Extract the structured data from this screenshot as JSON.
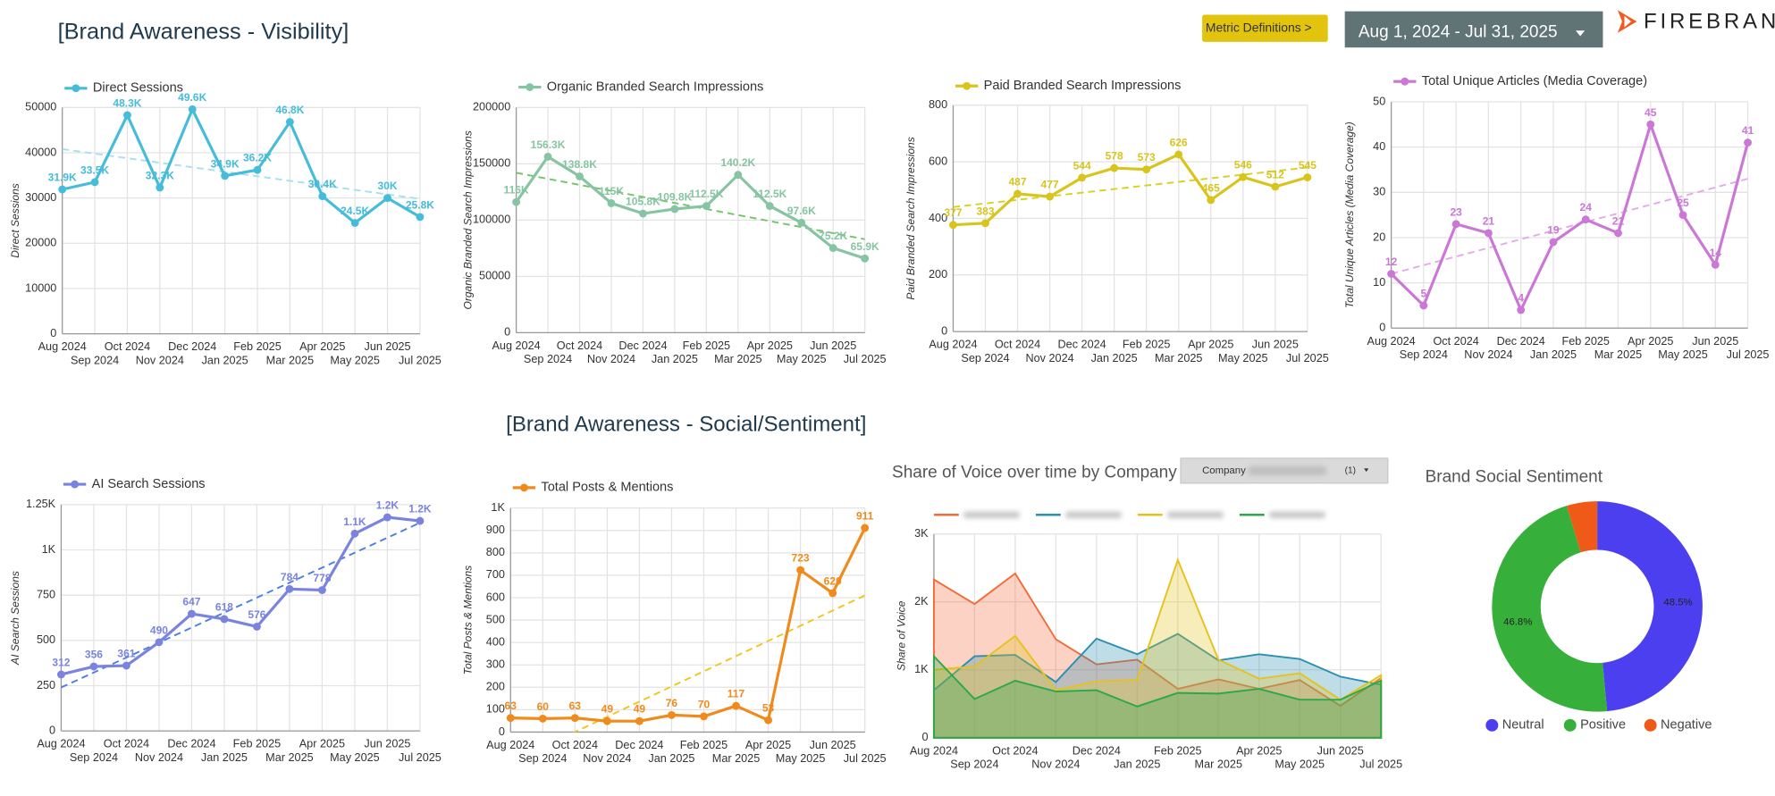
{
  "header": {
    "title": "[Brand Awareness - Visibility]",
    "metric_button": "Metric Definitions >",
    "date_range": "Aug 1, 2024 - Jul 31, 2025",
    "logo": "FIREBRAND"
  },
  "section_title": "[Brand Awareness - Social/Sentiment]",
  "chart_data": [
    {
      "type": "line",
      "y_label": "Direct Sessions",
      "categories": [
        "Aug 2024",
        "Sep 2024",
        "Oct 2024",
        "Nov 2024",
        "Dec 2024",
        "Jan 2025",
        "Feb 2025",
        "Mar 2025",
        "Apr 2025",
        "May 2025",
        "Jun 2025",
        "Jul 2025"
      ],
      "series": [
        {
          "name": "Direct Sessions",
          "color": "#45bcd9",
          "values": [
            31900,
            33500,
            48300,
            32300,
            49600,
            34900,
            36200,
            46800,
            30400,
            24500,
            30000,
            25800
          ],
          "value_labels": [
            "31.9K",
            "33.5K",
            "48.3K",
            "32.3K",
            "49.6K",
            "34.9K",
            "36.2K",
            "46.8K",
            "30.4K",
            "24.5K",
            "30K",
            "25.8K"
          ]
        }
      ],
      "trend": {
        "color": "#a6dfee",
        "values": [
          40800,
          29800
        ]
      },
      "ylim": [
        0,
        50000
      ],
      "yticks": [
        0,
        10000,
        20000,
        30000,
        40000,
        50000
      ],
      "grid": true
    },
    {
      "type": "line",
      "y_label": "Organic Branded Search Impressions",
      "categories": [
        "Aug 2024",
        "Sep 2024",
        "Oct 2024",
        "Nov 2024",
        "Dec 2024",
        "Jan 2025",
        "Feb 2025",
        "Mar 2025",
        "Apr 2025",
        "May 2025",
        "Jun 2025",
        "Jul 2025"
      ],
      "series": [
        {
          "name": "Organic Branded Search Impressions",
          "color": "#86c4a3",
          "values": [
            116000,
            156300,
            138800,
            115000,
            105800,
            109800,
            112500,
            140200,
            112500,
            97600,
            75200,
            65900
          ],
          "value_labels": [
            "116K",
            "156.3K",
            "138.8K",
            "115K",
            "105.8K",
            "109.8K",
            "112.5K",
            "140.2K",
            "112.5K",
            "97.6K",
            "75.2K",
            "65.9K"
          ]
        }
      ],
      "trend": {
        "color": "#72c466",
        "values": [
          142000,
          83000
        ]
      },
      "ylim": [
        0,
        200000
      ],
      "yticks": [
        0,
        50000,
        100000,
        150000,
        200000
      ],
      "grid": true
    },
    {
      "type": "line",
      "y_label": "Paid Branded Search Impressions",
      "categories": [
        "Aug 2024",
        "Sep 2024",
        "Oct 2024",
        "Nov 2024",
        "Dec 2024",
        "Jan 2025",
        "Feb 2025",
        "Mar 2025",
        "Apr 2025",
        "May 2025",
        "Jun 2025",
        "Jul 2025"
      ],
      "series": [
        {
          "name": "Paid Branded Search Impressions",
          "color": "#d9c41d",
          "values": [
            377,
            383,
            487,
            477,
            544,
            578,
            573,
            626,
            465,
            546,
            512,
            545
          ],
          "value_labels": [
            "377",
            "383",
            "487",
            "477",
            "544",
            "578",
            "573",
            "626",
            "465",
            "546",
            "512",
            "545"
          ]
        }
      ],
      "trend": {
        "color": "#d6d21c",
        "values": [
          440,
          580
        ]
      },
      "ylim": [
        0,
        800
      ],
      "yticks": [
        0,
        200,
        400,
        600,
        800
      ],
      "grid": true
    },
    {
      "type": "line",
      "y_label": "Total Unique Articles (Media Coverage)",
      "categories": [
        "Aug 2024",
        "Sep 2024",
        "Oct 2024",
        "Nov 2024",
        "Dec 2024",
        "Jan 2025",
        "Feb 2025",
        "Mar 2025",
        "Apr 2025",
        "May 2025",
        "Jun 2025",
        "Jul 2025"
      ],
      "series": [
        {
          "name": "Total Unique Articles (Media Coverage)",
          "color": "#cb77d6",
          "values": [
            12,
            5,
            23,
            21,
            4,
            19,
            24,
            21,
            45,
            25,
            14,
            41
          ],
          "value_labels": [
            "12",
            "5",
            "23",
            "21",
            "4",
            "19",
            "24",
            "21",
            "45",
            "25",
            "14",
            "41"
          ]
        }
      ],
      "trend": {
        "color": "#e4a9ea",
        "values": [
          12,
          33
        ]
      },
      "ylim": [
        0,
        50
      ],
      "yticks": [
        0,
        10,
        20,
        30,
        40,
        50
      ],
      "grid": true
    },
    {
      "type": "line",
      "y_label": "AI Search Sessions",
      "categories": [
        "Aug 2024",
        "Sep 2024",
        "Oct 2024",
        "Nov 2024",
        "Dec 2024",
        "Jan 2025",
        "Feb 2025",
        "Mar 2025",
        "Apr 2025",
        "May 2025",
        "Jun 2025",
        "Jul 2025"
      ],
      "series": [
        {
          "name": "AI Search Sessions",
          "color": "#7a84df",
          "values": [
            312,
            356,
            361,
            490,
            647,
            618,
            576,
            784,
            778,
            1090,
            1180,
            1160
          ],
          "value_labels": [
            "312",
            "356",
            "361",
            "490",
            "647",
            "618",
            "576",
            "784",
            "778",
            "1.1K",
            "1.2K",
            "1.2K"
          ]
        }
      ],
      "trend": {
        "color": "#4a7ee6",
        "values": [
          240,
          1150
        ]
      },
      "ylim": [
        0,
        1250
      ],
      "yticks": [
        0,
        250,
        500,
        750,
        {
          "value": 1000,
          "label": "1K"
        },
        {
          "value": 1250,
          "label": "1.25K"
        }
      ],
      "grid": true
    },
    {
      "type": "line",
      "y_label": "Total Posts & Mentions",
      "categories": [
        "Aug 2024",
        "Sep 2024",
        "Oct 2024",
        "Nov 2024",
        "Dec 2024",
        "Jan 2025",
        "Feb 2025",
        "Mar 2025",
        "Apr 2025",
        "May 2025",
        "Jun 2025",
        "Jul 2025"
      ],
      "series": [
        {
          "name": "Total Posts & Mentions",
          "color": "#f08a1c",
          "values": [
            63,
            60,
            63,
            49,
            49,
            76,
            70,
            117,
            53,
            723,
            620,
            911
          ],
          "value_labels": [
            "63",
            "60",
            "63",
            "49",
            "49",
            "76",
            "70",
            "117",
            "53",
            "723",
            "620",
            "911"
          ]
        }
      ],
      "trend": {
        "color": "#f0c61c",
        "values": [
          -135,
          610
        ]
      },
      "ylim": [
        0,
        1000
      ],
      "yticks": [
        0,
        100,
        200,
        300,
        400,
        500,
        600,
        700,
        800,
        900,
        {
          "value": 1000,
          "label": "1K"
        }
      ],
      "grid": true
    },
    {
      "type": "area",
      "title": "Share of Voice over time by Company",
      "y_label": "Share of Voice",
      "filter": {
        "label": "Company",
        "count": "(1)"
      },
      "categories": [
        "Aug 2024",
        "Sep 2024",
        "Oct 2024",
        "Nov 2024",
        "Dec 2024",
        "Jan 2025",
        "Feb 2025",
        "Mar 2025",
        "Apr 2025",
        "May 2025",
        "Jun 2025",
        "Jul 2025"
      ],
      "series": [
        {
          "color": "#f26b3a",
          "values": [
            2330,
            1970,
            2420,
            1450,
            1080,
            1150,
            720,
            860,
            720,
            850,
            470,
            880
          ]
        },
        {
          "color": "#2a8fb0",
          "values": [
            700,
            1200,
            1220,
            820,
            1460,
            1230,
            1530,
            1140,
            1230,
            1160,
            900,
            780
          ]
        },
        {
          "color": "#e6c21c",
          "values": [
            1000,
            1050,
            1500,
            700,
            830,
            850,
            2620,
            1150,
            870,
            950,
            560,
            920
          ]
        },
        {
          "color": "#2aa84a",
          "values": [
            1200,
            570,
            840,
            680,
            700,
            460,
            660,
            650,
            720,
            560,
            560,
            840
          ]
        }
      ],
      "ylim": [
        0,
        3000
      ],
      "yticks": [
        0,
        {
          "value": 1000,
          "label": "1K"
        },
        {
          "value": 2000,
          "label": "2K"
        },
        {
          "value": 3000,
          "label": "3K"
        }
      ],
      "grid": true
    },
    {
      "type": "pie",
      "title": "Brand Social Sentiment",
      "donut": true,
      "categories": [
        "Neutral",
        "Positive",
        "Negative"
      ],
      "colors": [
        "#4b3ff0",
        "#36b03a",
        "#f05a18"
      ],
      "values": [
        48.5,
        46.8,
        4.7
      ],
      "value_labels": [
        "48.5%",
        "46.8%",
        null
      ]
    }
  ]
}
